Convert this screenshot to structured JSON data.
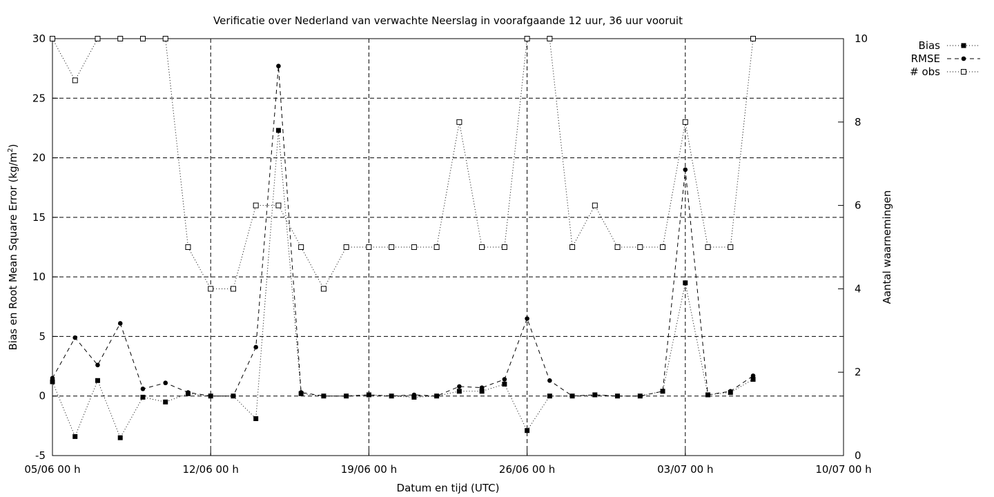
{
  "chart_data": {
    "type": "line",
    "title": "Verificatie over Nederland van verwachte Neerslag in voorafgaande 12 uur, 36 uur vooruit",
    "xlabel": "Datum en tijd (UTC)",
    "ylabel": "Bias en Root Mean Square Error (kg/m",
    "ylabel_sup": "2",
    "ylabel_close": ")",
    "y2label": "Aantal waarnemingen",
    "xlim": [
      "05/06 00 h",
      "10/07 00 h"
    ],
    "x_ticks": [
      "05/06 00 h",
      "12/06 00 h",
      "19/06 00 h",
      "26/06 00 h",
      "03/07 00 h",
      "10/07 00 h"
    ],
    "ylim": [
      -5,
      30
    ],
    "y_ticks": [
      "-5",
      "0",
      "5",
      "10",
      "15",
      "20",
      "25",
      "30"
    ],
    "y2lim": [
      0,
      10
    ],
    "y2_ticks": [
      "0",
      "2",
      "4",
      "6",
      "8",
      "10"
    ],
    "grid": true,
    "legend_position": "top-right, outside",
    "x": [
      "05/06 00 h",
      "06/06 00 h",
      "07/06 00 h",
      "08/06 00 h",
      "09/06 00 h",
      "10/06 00 h",
      "11/06 00 h",
      "12/06 00 h",
      "13/06 00 h",
      "14/06 00 h",
      "15/06 00 h",
      "16/06 00 h",
      "17/06 00 h",
      "18/06 00 h",
      "19/06 00 h",
      "20/06 00 h",
      "21/06 00 h",
      "22/06 00 h",
      "23/06 00 h",
      "24/06 00 h",
      "25/06 00 h",
      "26/06 00 h",
      "27/06 00 h",
      "28/06 00 h",
      "29/06 00 h",
      "30/06 00 h",
      "01/07 00 h",
      "02/07 00 h",
      "03/07 00 h",
      "04/07 00 h",
      "05/07 00 h",
      "06/07 00 h"
    ],
    "series": [
      {
        "name": "Bias",
        "axis": "left",
        "marker": "filled-square",
        "dash": "1,3",
        "values": [
          1.2,
          -3.4,
          1.3,
          -3.5,
          -0.1,
          -0.5,
          0.2,
          0.0,
          0.0,
          -1.9,
          22.3,
          0.2,
          0.0,
          0.0,
          0.1,
          0.0,
          -0.1,
          0.0,
          0.4,
          0.4,
          1.0,
          -2.9,
          0.0,
          0.0,
          0.1,
          0.0,
          0.0,
          0.4,
          9.5,
          0.1,
          0.3,
          1.4
        ]
      },
      {
        "name": "RMSE",
        "axis": "left",
        "marker": "filled-circle",
        "dash": "6,5",
        "values": [
          1.5,
          4.9,
          2.6,
          6.1,
          0.6,
          1.1,
          0.3,
          0.0,
          0.0,
          4.1,
          27.7,
          0.3,
          0.0,
          0.0,
          0.1,
          0.0,
          0.1,
          0.0,
          0.8,
          0.7,
          1.4,
          6.5,
          1.3,
          0.0,
          0.1,
          0.0,
          0.0,
          0.4,
          19.0,
          0.1,
          0.4,
          1.7
        ]
      },
      {
        "name": "# obs",
        "axis": "right",
        "marker": "open-square",
        "dash": "1,3",
        "values": [
          10,
          9,
          10,
          10,
          10,
          10,
          5,
          4,
          4,
          6,
          6,
          5,
          4,
          5,
          5,
          5,
          5,
          5,
          8,
          5,
          5,
          10,
          10,
          5,
          6,
          5,
          5,
          5,
          8,
          5,
          5,
          10
        ]
      }
    ]
  }
}
